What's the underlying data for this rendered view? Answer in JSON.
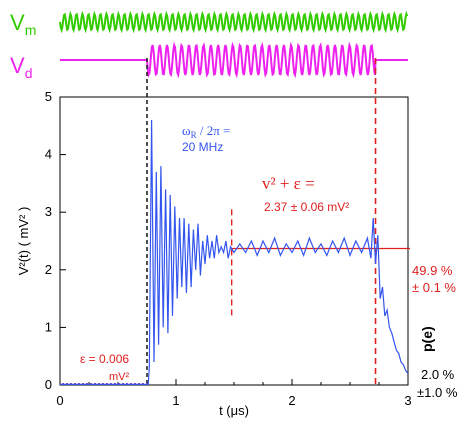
{
  "colors": {
    "vm": "#33cc00",
    "vd": "#ee22ee",
    "signal": "#3355ee",
    "red": "#e02020",
    "axis": "#000000",
    "purple_baseline": "#8844cc"
  },
  "labels": {
    "vm_main": "V",
    "vm_sub": "m",
    "vd_main": "V",
    "vd_sub": "d",
    "omega_line1_a": "ω",
    "omega_line1_sub": "R",
    "omega_line1_b": " / 2π =",
    "omega_line2": "20 MHz",
    "v2eps": "v² + ε =",
    "v2eps_value": "2.37 ± 0.06 mV²",
    "eps_line1": "ε = 0.006",
    "eps_line2": "mV²",
    "right_top_1": "49.9 %",
    "right_top_2": "± 0.1 %",
    "right_bottom_1": "2.0 %",
    "right_bottom_2": "±1.0 %",
    "pe_label": "p(e)"
  },
  "chart_data": {
    "type": "line",
    "xlabel": "t (μs)",
    "ylabel": "V²(t)  ( mV² )",
    "xlim": [
      0,
      3
    ],
    "ylim": [
      0,
      5
    ],
    "xticks": [
      "0",
      "1",
      "2",
      "3"
    ],
    "yticks": [
      "0",
      "1",
      "2",
      "3",
      "4",
      "5"
    ],
    "grid": false,
    "annotations": {
      "drive_on_t": 0.75,
      "drive_off_t": 2.72,
      "steady_level": 2.37,
      "steady_start_t": 1.48,
      "baseline_level": 0.006
    },
    "series": [
      {
        "points": [
          [
            0.0,
            0.01
          ],
          [
            0.76,
            0.01
          ],
          [
            0.77,
            0.3
          ],
          [
            0.79,
            4.6
          ],
          [
            0.81,
            0.4
          ],
          [
            0.83,
            3.7
          ],
          [
            0.85,
            0.7
          ],
          [
            0.87,
            3.8
          ],
          [
            0.89,
            1.0
          ],
          [
            0.91,
            3.4
          ],
          [
            0.93,
            0.9
          ],
          [
            0.95,
            3.3
          ],
          [
            0.97,
            1.2
          ],
          [
            0.99,
            3.1
          ],
          [
            1.01,
            1.5
          ],
          [
            1.03,
            2.9
          ],
          [
            1.05,
            1.7
          ],
          [
            1.07,
            2.9
          ],
          [
            1.09,
            1.6
          ],
          [
            1.11,
            2.8
          ],
          [
            1.13,
            1.7
          ],
          [
            1.15,
            2.7
          ],
          [
            1.17,
            2.0
          ],
          [
            1.19,
            2.8
          ],
          [
            1.21,
            1.9
          ],
          [
            1.23,
            2.5
          ],
          [
            1.25,
            2.1
          ],
          [
            1.27,
            2.6
          ],
          [
            1.29,
            2.2
          ],
          [
            1.31,
            2.5
          ],
          [
            1.33,
            2.2
          ],
          [
            1.35,
            2.6
          ],
          [
            1.37,
            2.3
          ],
          [
            1.39,
            2.4
          ],
          [
            1.41,
            2.3
          ],
          [
            1.43,
            2.5
          ],
          [
            1.45,
            2.2
          ],
          [
            1.47,
            2.4
          ],
          [
            1.5,
            2.3
          ],
          [
            1.55,
            2.45
          ],
          [
            1.6,
            2.3
          ],
          [
            1.65,
            2.5
          ],
          [
            1.7,
            2.25
          ],
          [
            1.75,
            2.5
          ],
          [
            1.8,
            2.3
          ],
          [
            1.85,
            2.55
          ],
          [
            1.9,
            2.25
          ],
          [
            1.95,
            2.45
          ],
          [
            2.0,
            2.3
          ],
          [
            2.05,
            2.5
          ],
          [
            2.1,
            2.25
          ],
          [
            2.15,
            2.55
          ],
          [
            2.2,
            2.3
          ],
          [
            2.25,
            2.45
          ],
          [
            2.3,
            2.25
          ],
          [
            2.35,
            2.5
          ],
          [
            2.4,
            2.3
          ],
          [
            2.45,
            2.55
          ],
          [
            2.5,
            2.25
          ],
          [
            2.55,
            2.5
          ],
          [
            2.6,
            2.3
          ],
          [
            2.65,
            2.55
          ],
          [
            2.68,
            2.2
          ],
          [
            2.7,
            2.9
          ],
          [
            2.72,
            2.1
          ],
          [
            2.74,
            2.6
          ],
          [
            2.76,
            1.5
          ],
          [
            2.78,
            1.7
          ],
          [
            2.8,
            1.2
          ],
          [
            2.82,
            1.3
          ],
          [
            2.84,
            1.0
          ],
          [
            2.86,
            0.9
          ],
          [
            2.88,
            0.75
          ],
          [
            2.9,
            0.6
          ],
          [
            2.92,
            0.55
          ],
          [
            2.94,
            0.4
          ],
          [
            2.96,
            0.35
          ],
          [
            2.98,
            0.25
          ],
          [
            3.0,
            0.2
          ]
        ]
      }
    ]
  }
}
